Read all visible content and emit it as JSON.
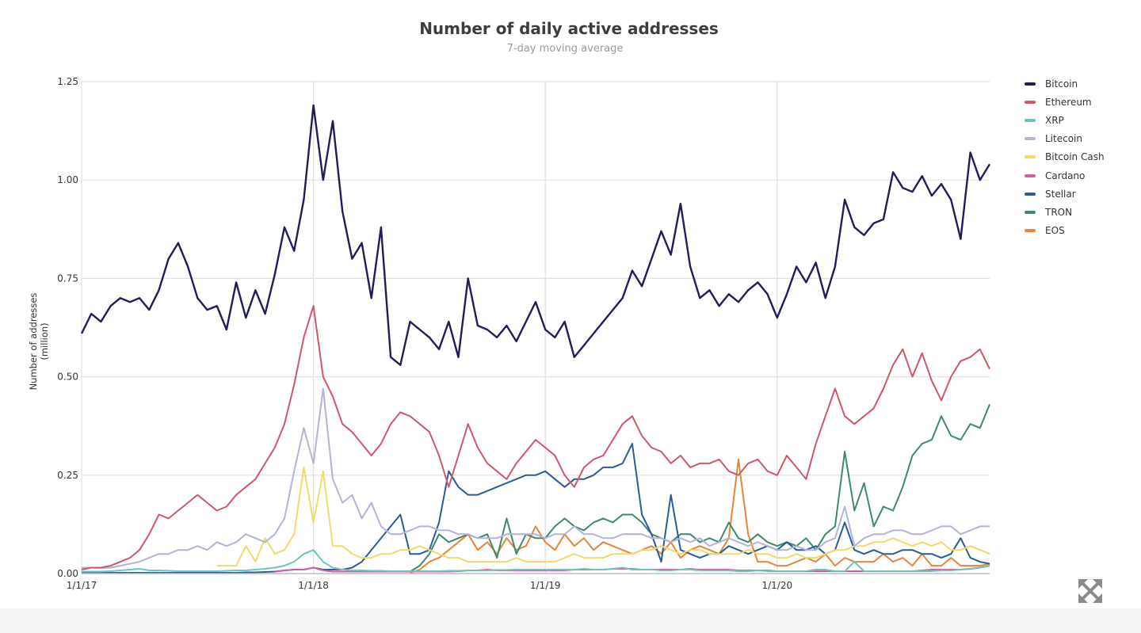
{
  "chart_data": {
    "type": "line",
    "title": "Number of daily active addresses",
    "subtitle": "7-day moving average",
    "xlabel": "",
    "ylabel": "Number of addresses (million)",
    "x_unit": "months since 1/1/17",
    "xlim": [
      0,
      47
    ],
    "ylim": [
      0,
      1.25
    ],
    "yticks": [
      "0.00",
      "0.25",
      "0.50",
      "0.75",
      "1.00",
      "1.25"
    ],
    "ytick_values": [
      0,
      0.25,
      0.5,
      0.75,
      1.0,
      1.25
    ],
    "xticks": [
      "1/1/17",
      "1/1/18",
      "1/1/19",
      "1/1/20"
    ],
    "xtick_values": [
      0,
      12,
      24,
      36
    ],
    "grid": true,
    "legend_position": "right",
    "x": [
      0,
      0.5,
      1,
      1.5,
      2,
      2.5,
      3,
      3.5,
      4,
      4.5,
      5,
      5.5,
      6,
      6.5,
      7,
      7.5,
      8,
      8.5,
      9,
      9.5,
      10,
      10.5,
      11,
      11.5,
      12,
      12.5,
      13,
      13.5,
      14,
      14.5,
      15,
      15.5,
      16,
      16.5,
      17,
      17.5,
      18,
      18.5,
      19,
      19.5,
      20,
      20.5,
      21,
      21.5,
      22,
      22.5,
      23,
      23.5,
      24,
      24.5,
      25,
      25.5,
      26,
      26.5,
      27,
      27.5,
      28,
      28.5,
      29,
      29.5,
      30,
      30.5,
      31,
      31.5,
      32,
      32.5,
      33,
      33.5,
      34,
      34.5,
      35,
      35.5,
      36,
      36.5,
      37,
      37.5,
      38,
      38.5,
      39,
      39.5,
      40,
      40.5,
      41,
      41.5,
      42,
      42.5,
      43,
      43.5,
      44,
      44.5,
      45,
      45.5,
      46,
      46.5,
      47
    ],
    "series": [
      {
        "name": "Bitcoin",
        "color": "#1f1d5c",
        "values": [
          0.61,
          0.66,
          0.64,
          0.68,
          0.7,
          0.69,
          0.7,
          0.67,
          0.72,
          0.8,
          0.84,
          0.78,
          0.7,
          0.67,
          0.68,
          0.62,
          0.74,
          0.65,
          0.72,
          0.66,
          0.76,
          0.88,
          0.82,
          0.95,
          1.19,
          1.0,
          1.15,
          0.92,
          0.8,
          0.84,
          0.7,
          0.88,
          0.55,
          0.53,
          0.64,
          0.62,
          0.6,
          0.57,
          0.64,
          0.55,
          0.75,
          0.63,
          0.62,
          0.6,
          0.63,
          0.59,
          0.64,
          0.69,
          0.62,
          0.6,
          0.64,
          0.55,
          0.58,
          0.61,
          0.64,
          0.67,
          0.7,
          0.77,
          0.73,
          0.8,
          0.87,
          0.81,
          0.94,
          0.78,
          0.7,
          0.72,
          0.68,
          0.71,
          0.69,
          0.72,
          0.74,
          0.71,
          0.65,
          0.71,
          0.78,
          0.74,
          0.79,
          0.7,
          0.78,
          0.95,
          0.88,
          0.86,
          0.89,
          0.9,
          1.02,
          0.98,
          0.97,
          1.01,
          0.96,
          0.99,
          0.95,
          0.85,
          1.07,
          1.0,
          1.04
        ]
      },
      {
        "name": "Ethereum",
        "color": "#d0566a",
        "values": [
          0.01,
          0.015,
          0.015,
          0.02,
          0.03,
          0.04,
          0.06,
          0.1,
          0.15,
          0.14,
          0.16,
          0.18,
          0.2,
          0.18,
          0.16,
          0.17,
          0.2,
          0.22,
          0.24,
          0.28,
          0.32,
          0.38,
          0.48,
          0.6,
          0.68,
          0.5,
          0.45,
          0.38,
          0.36,
          0.33,
          0.3,
          0.33,
          0.38,
          0.41,
          0.4,
          0.38,
          0.36,
          0.3,
          0.22,
          0.3,
          0.38,
          0.32,
          0.28,
          0.26,
          0.24,
          0.28,
          0.31,
          0.34,
          0.32,
          0.3,
          0.25,
          0.22,
          0.27,
          0.29,
          0.3,
          0.34,
          0.38,
          0.4,
          0.35,
          0.32,
          0.31,
          0.28,
          0.3,
          0.27,
          0.28,
          0.28,
          0.29,
          0.26,
          0.25,
          0.28,
          0.29,
          0.26,
          0.25,
          0.3,
          0.27,
          0.24,
          0.33,
          0.4,
          0.47,
          0.4,
          0.38,
          0.4,
          0.42,
          0.47,
          0.53,
          0.57,
          0.5,
          0.56,
          0.49,
          0.44,
          0.5,
          0.54,
          0.55,
          0.57,
          0.52
        ]
      },
      {
        "name": "XRP",
        "color": "#6fc4b8",
        "values": [
          0.005,
          0.005,
          0.005,
          0.006,
          0.008,
          0.01,
          0.012,
          0.008,
          0.008,
          0.007,
          0.006,
          0.006,
          0.006,
          0.006,
          0.006,
          0.007,
          0.008,
          0.008,
          0.01,
          0.012,
          0.015,
          0.02,
          0.03,
          0.05,
          0.06,
          0.03,
          0.015,
          0.01,
          0.008,
          0.008,
          0.007,
          0.007,
          0.006,
          0.006,
          0.006,
          0.006,
          0.006,
          0.006,
          0.007,
          0.007,
          0.008,
          0.008,
          0.008,
          0.009,
          0.009,
          0.01,
          0.01,
          0.01,
          0.01,
          0.01,
          0.01,
          0.01,
          0.012,
          0.01,
          0.01,
          0.012,
          0.015,
          0.01,
          0.01,
          0.01,
          0.008,
          0.008,
          0.01,
          0.01,
          0.008,
          0.008,
          0.008,
          0.008,
          0.006,
          0.006,
          0.008,
          0.006,
          0.006,
          0.006,
          0.006,
          0.006,
          0.01,
          0.01,
          0.006,
          0.006,
          0.03,
          0.006,
          0.006,
          0.006,
          0.006,
          0.006,
          0.006,
          0.006,
          0.006,
          0.008,
          0.008,
          0.01,
          0.012,
          0.015,
          0.02
        ]
      },
      {
        "name": "Litecoin",
        "color": "#b5b2dc",
        "values": [
          0.015,
          0.015,
          0.014,
          0.015,
          0.02,
          0.025,
          0.03,
          0.04,
          0.05,
          0.05,
          0.06,
          0.06,
          0.07,
          0.06,
          0.08,
          0.07,
          0.08,
          0.1,
          0.09,
          0.08,
          0.1,
          0.14,
          0.26,
          0.37,
          0.28,
          0.47,
          0.24,
          0.18,
          0.2,
          0.14,
          0.18,
          0.12,
          0.1,
          0.1,
          0.11,
          0.12,
          0.12,
          0.11,
          0.11,
          0.1,
          0.1,
          0.09,
          0.09,
          0.09,
          0.1,
          0.1,
          0.1,
          0.1,
          0.09,
          0.1,
          0.1,
          0.12,
          0.1,
          0.1,
          0.09,
          0.09,
          0.1,
          0.1,
          0.1,
          0.09,
          0.09,
          0.08,
          0.09,
          0.08,
          0.09,
          0.07,
          0.08,
          0.09,
          0.08,
          0.07,
          0.08,
          0.07,
          0.06,
          0.06,
          0.07,
          0.06,
          0.06,
          0.08,
          0.09,
          0.17,
          0.07,
          0.09,
          0.1,
          0.1,
          0.11,
          0.11,
          0.1,
          0.1,
          0.11,
          0.12,
          0.12,
          0.1,
          0.11,
          0.12,
          0.12
        ]
      },
      {
        "name": "Bitcoin Cash",
        "color": "#f2da6a",
        "values": [
          null,
          null,
          null,
          null,
          null,
          null,
          null,
          null,
          null,
          null,
          null,
          null,
          null,
          null,
          0.02,
          0.02,
          0.02,
          0.07,
          0.03,
          0.09,
          0.05,
          0.06,
          0.1,
          0.27,
          0.13,
          0.26,
          0.07,
          0.07,
          0.05,
          0.04,
          0.04,
          0.05,
          0.05,
          0.06,
          0.06,
          0.07,
          0.06,
          0.05,
          0.04,
          0.04,
          0.03,
          0.03,
          0.03,
          0.03,
          0.03,
          0.04,
          0.03,
          0.03,
          0.03,
          0.03,
          0.04,
          0.05,
          0.04,
          0.04,
          0.04,
          0.05,
          0.05,
          0.05,
          0.06,
          0.06,
          0.07,
          0.06,
          0.05,
          0.06,
          0.06,
          0.05,
          0.05,
          0.05,
          0.05,
          0.06,
          0.05,
          0.05,
          0.04,
          0.04,
          0.05,
          0.04,
          0.04,
          0.05,
          0.06,
          0.06,
          0.07,
          0.07,
          0.08,
          0.08,
          0.09,
          0.08,
          0.07,
          0.08,
          0.07,
          0.08,
          0.06,
          0.06,
          0.07,
          0.06,
          0.05
        ]
      },
      {
        "name": "Cardano",
        "color": "#d45fa0",
        "values": [
          null,
          null,
          null,
          null,
          null,
          null,
          null,
          null,
          null,
          null,
          null,
          null,
          null,
          null,
          null,
          null,
          null,
          null,
          null,
          null,
          0.005,
          0.008,
          0.01,
          0.01,
          0.015,
          0.008,
          0.005,
          0.005,
          0.005,
          0.005,
          0.005,
          0.005,
          0.005,
          0.005,
          0.005,
          0.005,
          0.005,
          0.005,
          0.005,
          0.006,
          0.008,
          0.008,
          0.01,
          0.008,
          0.008,
          0.008,
          0.008,
          0.008,
          0.008,
          0.008,
          0.008,
          0.01,
          0.01,
          0.01,
          0.01,
          0.012,
          0.012,
          0.012,
          0.01,
          0.01,
          0.01,
          0.01,
          0.01,
          0.012,
          0.01,
          0.01,
          0.01,
          0.01,
          0.008,
          0.008,
          0.008,
          0.008,
          0.006,
          0.006,
          0.006,
          0.006,
          0.006,
          0.006,
          0.006,
          0.006,
          0.006,
          0.006,
          0.006,
          0.006,
          0.006,
          0.006,
          0.006,
          0.008,
          0.01,
          0.01,
          0.01,
          0.01,
          0.012,
          0.015,
          0.02
        ]
      },
      {
        "name": "Stellar",
        "color": "#2a5c9a",
        "values": [
          0.002,
          0.002,
          0.002,
          0.002,
          0.002,
          0.002,
          0.002,
          0.002,
          0.002,
          0.002,
          0.002,
          0.002,
          0.002,
          0.002,
          0.002,
          0.002,
          0.002,
          0.003,
          0.003,
          0.004,
          0.005,
          0.008,
          0.01,
          0.01,
          0.015,
          0.01,
          0.01,
          0.01,
          0.015,
          0.03,
          0.06,
          0.09,
          0.12,
          0.15,
          0.05,
          0.05,
          0.06,
          0.13,
          0.26,
          0.22,
          0.2,
          0.2,
          0.21,
          0.22,
          0.23,
          0.24,
          0.25,
          0.25,
          0.26,
          0.24,
          0.22,
          0.24,
          0.24,
          0.25,
          0.27,
          0.27,
          0.28,
          0.33,
          0.15,
          0.1,
          0.03,
          0.2,
          0.06,
          0.05,
          0.04,
          0.05,
          0.05,
          0.07,
          0.06,
          0.05,
          0.06,
          0.07,
          0.06,
          0.08,
          0.06,
          0.06,
          0.07,
          0.05,
          0.06,
          0.13,
          0.06,
          0.05,
          0.06,
          0.05,
          0.05,
          0.06,
          0.06,
          0.05,
          0.05,
          0.04,
          0.05,
          0.09,
          0.04,
          0.03,
          0.025
        ]
      },
      {
        "name": "TRON",
        "color": "#3d8a6c",
        "values": [
          null,
          null,
          null,
          null,
          null,
          null,
          null,
          null,
          null,
          null,
          null,
          null,
          null,
          null,
          null,
          null,
          null,
          null,
          null,
          null,
          null,
          null,
          null,
          null,
          null,
          null,
          null,
          null,
          null,
          null,
          null,
          null,
          null,
          null,
          0.005,
          0.02,
          0.05,
          0.1,
          0.08,
          0.09,
          0.1,
          0.09,
          0.1,
          0.04,
          0.14,
          0.05,
          0.1,
          0.09,
          0.09,
          0.12,
          0.14,
          0.12,
          0.11,
          0.13,
          0.14,
          0.13,
          0.15,
          0.15,
          0.13,
          0.1,
          0.09,
          0.08,
          0.1,
          0.1,
          0.08,
          0.09,
          0.08,
          0.13,
          0.09,
          0.08,
          0.1,
          0.08,
          0.07,
          0.08,
          0.07,
          0.09,
          0.06,
          0.1,
          0.12,
          0.31,
          0.16,
          0.23,
          0.12,
          0.17,
          0.16,
          0.22,
          0.3,
          0.33,
          0.34,
          0.4,
          0.35,
          0.34,
          0.38,
          0.37,
          0.43
        ]
      },
      {
        "name": "EOS",
        "color": "#e8843a",
        "values": [
          null,
          null,
          null,
          null,
          null,
          null,
          null,
          null,
          null,
          null,
          null,
          null,
          null,
          null,
          null,
          null,
          null,
          null,
          null,
          null,
          null,
          null,
          null,
          null,
          null,
          null,
          null,
          null,
          null,
          null,
          null,
          null,
          null,
          null,
          0.002,
          0.01,
          0.03,
          0.04,
          0.06,
          0.08,
          0.1,
          0.06,
          0.08,
          0.05,
          0.09,
          0.06,
          0.07,
          0.12,
          0.08,
          0.06,
          0.1,
          0.07,
          0.09,
          0.06,
          0.08,
          0.07,
          0.06,
          0.05,
          0.06,
          0.07,
          0.05,
          0.08,
          0.04,
          0.06,
          0.07,
          0.06,
          0.05,
          0.09,
          0.29,
          0.1,
          0.03,
          0.03,
          0.02,
          0.02,
          0.03,
          0.04,
          0.03,
          0.05,
          0.02,
          0.04,
          0.03,
          0.03,
          0.03,
          0.05,
          0.03,
          0.04,
          0.02,
          0.05,
          0.02,
          0.02,
          0.04,
          0.02,
          0.02,
          0.02,
          0.025
        ]
      }
    ]
  },
  "ui": {
    "expand_icon": "expand-arrows-icon"
  }
}
